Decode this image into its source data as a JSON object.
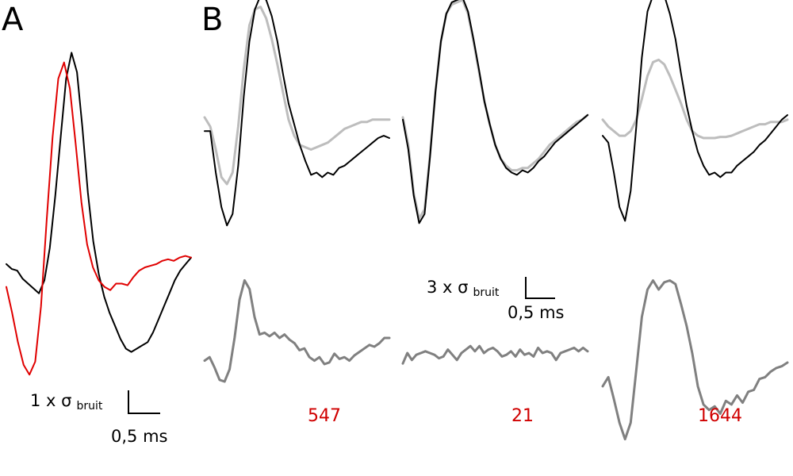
{
  "panels": {
    "a_label": "A",
    "b_label": "B"
  },
  "scale_bars": {
    "a": {
      "amplitude_prefix": "1 x σ",
      "amplitude_sub": "bruit",
      "time": "0,5 ms"
    },
    "b": {
      "amplitude_prefix": "3 x σ",
      "amplitude_sub": "bruit",
      "time": "0,5 ms"
    }
  },
  "colors": {
    "black": "#000000",
    "red": "#e00000",
    "light_gray": "#bdbdbd",
    "dark_gray": "#808080",
    "count_red": "#d00000"
  },
  "counts": [
    "547",
    "21",
    "1644"
  ],
  "chart_data": {
    "type": "line",
    "panel_a": {
      "series": [
        {
          "color": "black",
          "values": [
            0.1,
            -0.05,
            -0.1,
            -0.35,
            -0.5,
            -0.65,
            -0.8,
            -0.4,
            0.6,
            2.2,
            4.0,
            5.8,
            6.6,
            6.0,
            4.3,
            2.3,
            0.8,
            -0.2,
            -0.9,
            -1.4,
            -1.8,
            -2.2,
            -2.5,
            -2.6,
            -2.5,
            -2.4,
            -2.3,
            -2.0,
            -1.6,
            -1.2,
            -0.8,
            -0.4,
            -0.1,
            0.1,
            0.3
          ]
        },
        {
          "color": "red",
          "values": [
            -0.6,
            -1.4,
            -2.3,
            -3.0,
            -3.3,
            -2.9,
            -1.2,
            1.5,
            4.0,
            5.8,
            6.3,
            5.5,
            3.8,
            2.0,
            0.7,
            0.0,
            -0.4,
            -0.6,
            -0.7,
            -0.5,
            -0.5,
            -0.55,
            -0.3,
            -0.1,
            0.0,
            0.05,
            0.1,
            0.2,
            0.25,
            0.2,
            0.3,
            0.35,
            0.3
          ]
        }
      ]
    },
    "panel_b_top": [
      {
        "series": [
          {
            "color": "black",
            "values": [
              0.3,
              0.3,
              -1.5,
              -3.0,
              -3.8,
              -3.3,
              -1.2,
              1.8,
              4.2,
              5.6,
              6.2,
              6.0,
              5.3,
              4.2,
              2.8,
              1.5,
              0.6,
              -0.3,
              -1.0,
              -1.6,
              -1.5,
              -1.7,
              -1.5,
              -1.6,
              -1.3,
              -1.2,
              -1.0,
              -0.8,
              -0.6,
              -0.4,
              -0.2,
              0.0,
              0.1,
              0.0
            ]
          },
          {
            "color": "light_gray",
            "values": [
              0.9,
              0.5,
              -0.5,
              -1.7,
              -2.0,
              -1.5,
              0.5,
              3.0,
              4.9,
              5.6,
              5.7,
              5.2,
              4.3,
              3.2,
              2.0,
              0.8,
              0.1,
              -0.3,
              -0.4,
              -0.5,
              -0.4,
              -0.3,
              -0.2,
              0.0,
              0.2,
              0.4,
              0.5,
              0.6,
              0.7,
              0.7,
              0.8,
              0.8,
              0.8,
              0.8
            ]
          }
        ]
      },
      {
        "series": [
          {
            "color": "black",
            "values": [
              0.8,
              -0.5,
              -2.5,
              -3.7,
              -3.3,
              -0.8,
              2.0,
              4.2,
              5.4,
              5.9,
              6.0,
              6.1,
              5.5,
              4.3,
              3.0,
              1.6,
              0.6,
              -0.3,
              -0.9,
              -1.3,
              -1.5,
              -1.6,
              -1.4,
              -1.5,
              -1.3,
              -1.0,
              -0.8,
              -0.5,
              -0.2,
              0.0,
              0.2,
              0.4,
              0.6,
              0.8,
              1.0
            ]
          },
          {
            "color": "light_gray",
            "values": [
              0.9,
              -0.3,
              -2.4,
              -3.5,
              -3.1,
              -0.7,
              2.0,
              4.2,
              5.4,
              5.8,
              5.9,
              6.0,
              5.4,
              4.2,
              2.9,
              1.6,
              0.6,
              -0.3,
              -0.9,
              -1.2,
              -1.4,
              -1.4,
              -1.3,
              -1.3,
              -1.1,
              -0.9,
              -0.6,
              -0.3,
              -0.1,
              0.1,
              0.3,
              0.5,
              0.7,
              0.8,
              1.0
            ]
          }
        ]
      },
      {
        "series": [
          {
            "color": "black",
            "values": [
              0.1,
              -0.2,
              -1.5,
              -3.0,
              -3.6,
              -2.3,
              0.5,
              3.5,
              5.5,
              6.2,
              6.3,
              6.2,
              5.4,
              4.3,
              2.8,
              1.4,
              0.3,
              -0.6,
              -1.2,
              -1.6,
              -1.5,
              -1.7,
              -1.5,
              -1.5,
              -1.2,
              -1.0,
              -0.8,
              -0.6,
              -0.3,
              -0.1,
              0.2,
              0.5,
              0.8,
              1.0
            ]
          },
          {
            "color": "light_gray",
            "values": [
              0.8,
              0.5,
              0.3,
              0.1,
              0.1,
              0.3,
              0.8,
              1.7,
              2.7,
              3.3,
              3.4,
              3.2,
              2.7,
              2.1,
              1.5,
              0.8,
              0.3,
              0.1,
              0.0,
              0.0,
              0.0,
              0.05,
              0.05,
              0.1,
              0.2,
              0.3,
              0.4,
              0.5,
              0.6,
              0.6,
              0.7,
              0.7,
              0.7,
              0.8
            ]
          }
        ]
      }
    ],
    "panel_b_bottom": [
      {
        "color": "dark_gray",
        "values": [
          -0.3,
          -0.1,
          -0.7,
          -1.4,
          -1.5,
          -0.8,
          1.0,
          3.2,
          4.3,
          3.8,
          2.2,
          1.2,
          1.3,
          1.1,
          1.3,
          1.0,
          1.2,
          0.9,
          0.7,
          0.3,
          0.4,
          -0.1,
          -0.3,
          -0.1,
          -0.5,
          -0.4,
          0.1,
          -0.2,
          -0.1,
          -0.3,
          0.0,
          0.2,
          0.4,
          0.6,
          0.5,
          0.7,
          1.0,
          1.0
        ]
      },
      {
        "color": "dark_gray",
        "values": [
          -0.1,
          0.5,
          0.1,
          0.4,
          0.5,
          0.6,
          0.5,
          0.4,
          0.2,
          0.3,
          0.7,
          0.4,
          0.1,
          0.5,
          0.7,
          0.9,
          0.6,
          0.9,
          0.5,
          0.7,
          0.8,
          0.6,
          0.3,
          0.4,
          0.6,
          0.3,
          0.7,
          0.4,
          0.5,
          0.3,
          0.8,
          0.5,
          0.6,
          0.5,
          0.1,
          0.5,
          0.6,
          0.7,
          0.8,
          0.6,
          0.8,
          0.6
        ]
      },
      {
        "color": "dark_gray",
        "values": [
          -0.3,
          0.2,
          -1.0,
          -2.3,
          -3.2,
          -2.3,
          0.6,
          3.5,
          5.0,
          5.5,
          5.0,
          5.4,
          5.5,
          5.3,
          4.2,
          3.0,
          1.5,
          -0.3,
          -1.3,
          -1.6,
          -1.4,
          -1.8,
          -1.1,
          -1.3,
          -0.8,
          -1.2,
          -0.6,
          -0.5,
          0.1,
          0.2,
          0.5,
          0.7,
          0.8,
          1.0
        ]
      }
    ]
  }
}
